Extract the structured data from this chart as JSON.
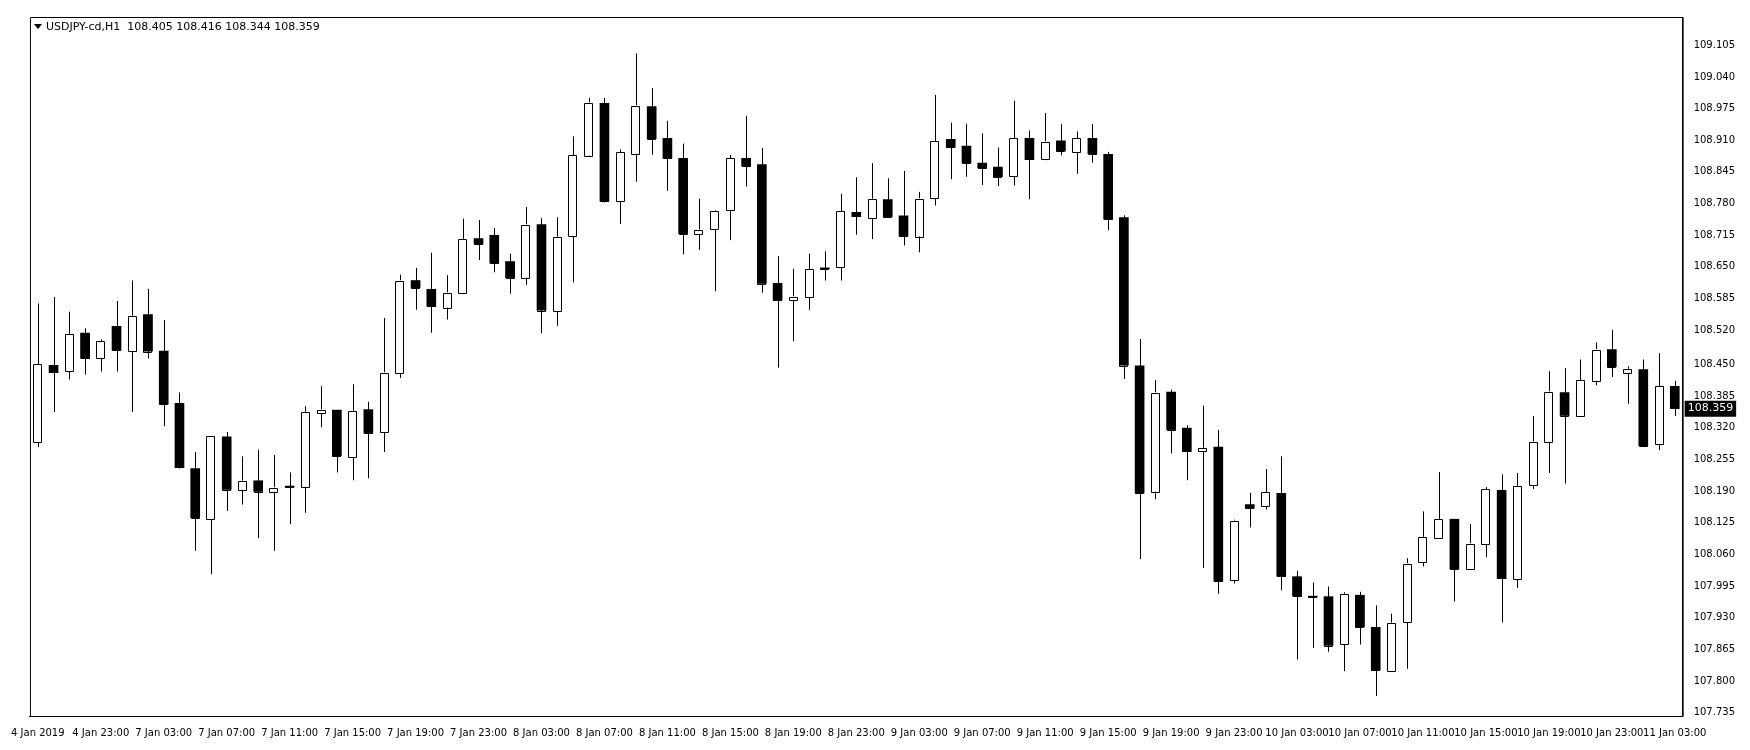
{
  "chart_data": {
    "type": "candlestick",
    "title": "USDJPY-cd,H1  108.405 108.416 108.344 108.359",
    "color": "#000000",
    "categories": [
      "4 Jan 2019",
      null,
      null,
      null,
      "4 Jan 23:00",
      null,
      null,
      null,
      "7 Jan 03:00",
      null,
      null,
      null,
      "7 Jan 07:00",
      null,
      null,
      null,
      "7 Jan 11:00",
      null,
      null,
      null,
      "7 Jan 15:00",
      null,
      null,
      null,
      "7 Jan 19:00",
      null,
      null,
      null,
      "7 Jan 23:00",
      null,
      null,
      null,
      "8 Jan 03:00",
      null,
      null,
      null,
      "8 Jan 07:00",
      null,
      null,
      null,
      "8 Jan 11:00",
      null,
      null,
      null,
      "8 Jan 15:00",
      null,
      null,
      null,
      "8 Jan 19:00",
      null,
      null,
      null,
      "8 Jan 23:00",
      null,
      null,
      null,
      "9 Jan 03:00",
      null,
      null,
      null,
      "9 Jan 07:00",
      null,
      null,
      null,
      "9 Jan 11:00",
      null,
      null,
      null,
      "9 Jan 15:00",
      null,
      null,
      null,
      "9 Jan 19:00",
      null,
      null,
      null,
      "9 Jan 23:00",
      null,
      null,
      null,
      "10 Jan 03:00",
      null,
      null,
      null,
      "10 Jan 07:00",
      null,
      null,
      null,
      "10 Jan 11:00",
      null,
      null,
      null,
      "10 Jan 15:00",
      null,
      null,
      null,
      "10 Jan 19:00",
      null,
      null,
      null,
      "10 Jan 23:00",
      null,
      null,
      null,
      "11 Jan 03:00"
    ],
    "ohlc": [
      [
        108.29,
        108.575,
        108.28,
        108.45
      ],
      [
        108.448,
        108.588,
        108.352,
        108.433
      ],
      [
        108.436,
        108.558,
        108.419,
        108.512
      ],
      [
        108.514,
        108.524,
        108.429,
        108.462
      ],
      [
        108.462,
        108.501,
        108.435,
        108.497
      ],
      [
        108.528,
        108.58,
        108.435,
        108.479
      ],
      [
        108.477,
        108.622,
        108.352,
        108.549
      ],
      [
        108.552,
        108.605,
        108.462,
        108.477
      ],
      [
        108.477,
        108.541,
        108.323,
        108.368
      ],
      [
        108.37,
        108.392,
        108.236,
        108.238
      ],
      [
        108.236,
        108.27,
        108.067,
        108.135
      ],
      [
        108.133,
        108.303,
        108.019,
        108.303
      ],
      [
        108.301,
        108.311,
        108.149,
        108.193
      ],
      [
        108.193,
        108.261,
        108.162,
        108.211
      ],
      [
        108.211,
        108.275,
        108.093,
        108.189
      ],
      [
        108.189,
        108.264,
        108.067,
        108.197
      ],
      [
        108.198,
        108.228,
        108.122,
        108.198
      ],
      [
        108.199,
        108.364,
        108.145,
        108.352
      ],
      [
        108.351,
        108.405,
        108.321,
        108.357
      ],
      [
        108.356,
        108.356,
        108.228,
        108.262
      ],
      [
        108.26,
        108.409,
        108.212,
        108.354
      ],
      [
        108.357,
        108.373,
        108.216,
        108.309
      ],
      [
        108.311,
        108.545,
        108.27,
        108.433
      ],
      [
        108.433,
        108.634,
        108.422,
        108.622
      ],
      [
        108.622,
        108.648,
        108.562,
        108.607
      ],
      [
        108.604,
        108.679,
        108.515,
        108.569
      ],
      [
        108.567,
        108.633,
        108.542,
        108.597
      ],
      [
        108.596,
        108.749,
        108.594,
        108.707
      ],
      [
        108.708,
        108.746,
        108.664,
        108.697
      ],
      [
        108.715,
        108.73,
        108.639,
        108.658
      ],
      [
        108.661,
        108.677,
        108.595,
        108.628
      ],
      [
        108.629,
        108.773,
        108.613,
        108.737
      ],
      [
        108.737,
        108.75,
        108.514,
        108.561
      ],
      [
        108.559,
        108.752,
        108.529,
        108.711
      ],
      [
        108.713,
        108.918,
        108.618,
        108.879
      ],
      [
        108.879,
        108.997,
        108.877,
        108.987
      ],
      [
        108.986,
        108.997,
        108.782,
        108.785
      ],
      [
        108.785,
        108.891,
        108.738,
        108.885
      ],
      [
        108.883,
        109.088,
        108.825,
        108.981
      ],
      [
        108.979,
        109.017,
        108.88,
        108.913
      ],
      [
        108.914,
        108.95,
        108.806,
        108.873
      ],
      [
        108.873,
        108.903,
        108.676,
        108.718
      ],
      [
        108.717,
        108.79,
        108.685,
        108.726
      ],
      [
        108.728,
        108.766,
        108.6,
        108.764
      ],
      [
        108.766,
        108.88,
        108.705,
        108.873
      ],
      [
        108.873,
        108.96,
        108.815,
        108.857
      ],
      [
        108.86,
        108.894,
        108.597,
        108.616
      ],
      [
        108.616,
        108.672,
        108.443,
        108.582
      ],
      [
        108.583,
        108.646,
        108.497,
        108.589
      ],
      [
        108.587,
        108.677,
        108.562,
        108.645
      ],
      [
        108.646,
        108.682,
        108.622,
        108.646
      ],
      [
        108.649,
        108.8,
        108.622,
        108.764
      ],
      [
        108.762,
        108.834,
        108.716,
        108.753
      ],
      [
        108.749,
        108.863,
        108.707,
        108.789
      ],
      [
        108.788,
        108.832,
        108.753,
        108.753
      ],
      [
        108.755,
        108.847,
        108.694,
        108.713
      ],
      [
        108.713,
        108.804,
        108.68,
        108.79
      ],
      [
        108.792,
        109.003,
        108.776,
        108.908
      ],
      [
        108.912,
        108.946,
        108.83,
        108.896
      ],
      [
        108.898,
        108.944,
        108.835,
        108.864
      ],
      [
        108.863,
        108.924,
        108.818,
        108.853
      ],
      [
        108.855,
        108.895,
        108.816,
        108.835
      ],
      [
        108.835,
        108.991,
        108.817,
        108.914
      ],
      [
        108.914,
        108.93,
        108.789,
        108.87
      ],
      [
        108.872,
        108.966,
        108.869,
        108.907
      ],
      [
        108.909,
        108.943,
        108.879,
        108.888
      ],
      [
        108.886,
        108.928,
        108.841,
        108.914
      ],
      [
        108.914,
        108.943,
        108.864,
        108.882
      ],
      [
        108.881,
        108.886,
        108.725,
        108.748
      ],
      [
        108.751,
        108.756,
        108.42,
        108.448
      ],
      [
        108.447,
        108.502,
        108.05,
        108.186
      ],
      [
        108.189,
        108.418,
        108.173,
        108.392
      ],
      [
        108.393,
        108.398,
        108.267,
        108.316
      ],
      [
        108.319,
        108.325,
        108.212,
        108.271
      ],
      [
        108.272,
        108.365,
        108.032,
        108.278
      ],
      [
        108.28,
        108.315,
        107.979,
        108.005
      ],
      [
        108.008,
        108.131,
        108.0,
        108.129
      ],
      [
        108.162,
        108.186,
        108.115,
        108.155
      ],
      [
        108.158,
        108.235,
        108.152,
        108.187
      ],
      [
        108.185,
        108.261,
        107.986,
        108.015
      ],
      [
        108.014,
        108.026,
        107.844,
        107.974
      ],
      [
        107.972,
        108.002,
        107.868,
        107.972
      ],
      [
        107.973,
        107.994,
        107.86,
        107.873
      ],
      [
        107.875,
        107.982,
        107.82,
        107.978
      ],
      [
        107.976,
        107.983,
        107.875,
        107.911
      ],
      [
        107.91,
        107.955,
        107.769,
        107.822
      ],
      [
        107.82,
        107.938,
        107.82,
        107.919
      ],
      [
        107.921,
        108.052,
        107.825,
        108.041
      ],
      [
        108.043,
        108.148,
        108.035,
        108.095
      ],
      [
        108.093,
        108.229,
        108.093,
        108.132
      ],
      [
        108.132,
        108.132,
        107.963,
        108.03
      ],
      [
        108.03,
        108.122,
        108.03,
        108.082
      ],
      [
        108.08,
        108.198,
        108.054,
        108.193
      ],
      [
        108.191,
        108.224,
        107.92,
        108.01
      ],
      [
        108.01,
        108.227,
        107.991,
        108.2
      ],
      [
        108.203,
        108.344,
        108.194,
        108.291
      ],
      [
        108.291,
        108.436,
        108.227,
        108.394
      ],
      [
        108.392,
        108.442,
        108.205,
        108.345
      ],
      [
        108.344,
        108.46,
        108.344,
        108.417
      ],
      [
        108.417,
        108.495,
        108.407,
        108.48
      ],
      [
        108.48,
        108.521,
        108.424,
        108.445
      ],
      [
        108.431,
        108.446,
        108.369,
        108.44
      ],
      [
        108.439,
        108.46,
        108.283,
        108.283
      ],
      [
        108.285,
        108.473,
        108.274,
        108.405
      ],
      [
        108.405,
        108.416,
        108.344,
        108.359
      ]
    ],
    "ylim": [
      107.728,
      109.163
    ],
    "yticks": [
      {
        "value": 107.735,
        "label": "107.735"
      },
      {
        "value": 107.8,
        "label": "107.800"
      },
      {
        "value": 107.865,
        "label": "107.865"
      },
      {
        "value": 107.93,
        "label": "107.930"
      },
      {
        "value": 107.995,
        "label": "107.995"
      },
      {
        "value": 108.06,
        "label": "108.060"
      },
      {
        "value": 108.125,
        "label": "108.125"
      },
      {
        "value": 108.19,
        "label": "108.190"
      },
      {
        "value": 108.255,
        "label": "108.255"
      },
      {
        "value": 108.32,
        "label": "108.320"
      },
      {
        "value": 108.385,
        "label": "108.385"
      },
      {
        "value": 108.45,
        "label": "108.450"
      },
      {
        "value": 108.52,
        "label": "108.520"
      },
      {
        "value": 108.585,
        "label": "108.585"
      },
      {
        "value": 108.65,
        "label": "108.650"
      },
      {
        "value": 108.715,
        "label": "108.715"
      },
      {
        "value": 108.78,
        "label": "108.780"
      },
      {
        "value": 108.845,
        "label": "108.845"
      },
      {
        "value": 108.91,
        "label": "108.910"
      },
      {
        "value": 108.975,
        "label": "108.975"
      },
      {
        "value": 109.04,
        "label": "109.040"
      },
      {
        "value": 109.105,
        "label": "109.105"
      }
    ],
    "annotations": [
      "108.359"
    ],
    "colors": [
      "#ffffff",
      "#000000",
      "#ffffff",
      "#000000",
      "#ffffff",
      "#000000",
      "#ffffff",
      "#000000",
      "#000000",
      "#000000",
      "#000000",
      "#ffffff",
      "#000000",
      "#ffffff",
      "#000000",
      "#ffffff",
      "#000000",
      "#ffffff",
      "#ffffff",
      "#000000",
      "#ffffff",
      "#000000",
      "#ffffff",
      "#ffffff",
      "#000000",
      "#000000",
      "#ffffff",
      "#ffffff",
      "#000000",
      "#000000",
      "#000000",
      "#ffffff",
      "#000000",
      "#ffffff",
      "#ffffff",
      "#ffffff",
      "#000000",
      "#ffffff",
      "#ffffff",
      "#000000",
      "#000000",
      "#000000",
      "#ffffff",
      "#ffffff",
      "#ffffff",
      "#000000",
      "#000000",
      "#000000",
      "#ffffff",
      "#ffffff",
      "#000000",
      "#ffffff",
      "#000000",
      "#ffffff",
      "#000000",
      "#000000",
      "#ffffff",
      "#ffffff",
      "#000000",
      "#000000",
      "#000000",
      "#000000",
      "#ffffff",
      "#000000",
      "#ffffff",
      "#000000",
      "#ffffff",
      "#000000",
      "#000000",
      "#000000",
      "#000000",
      "#ffffff",
      "#000000",
      "#000000",
      "#ffffff",
      "#000000",
      "#ffffff",
      "#000000",
      "#ffffff",
      "#000000",
      "#000000",
      "#000000",
      "#000000",
      "#ffffff",
      "#000000",
      "#000000",
      "#ffffff",
      "#ffffff",
      "#ffffff",
      "#ffffff",
      "#000000",
      "#ffffff",
      "#ffffff",
      "#000000",
      "#ffffff",
      "#ffffff",
      "#ffffff",
      "#000000",
      "#ffffff",
      "#ffffff",
      "#000000",
      "#ffffff",
      "#000000",
      "#ffffff",
      "#000000"
    ],
    "grid": false,
    "legend": false
  }
}
